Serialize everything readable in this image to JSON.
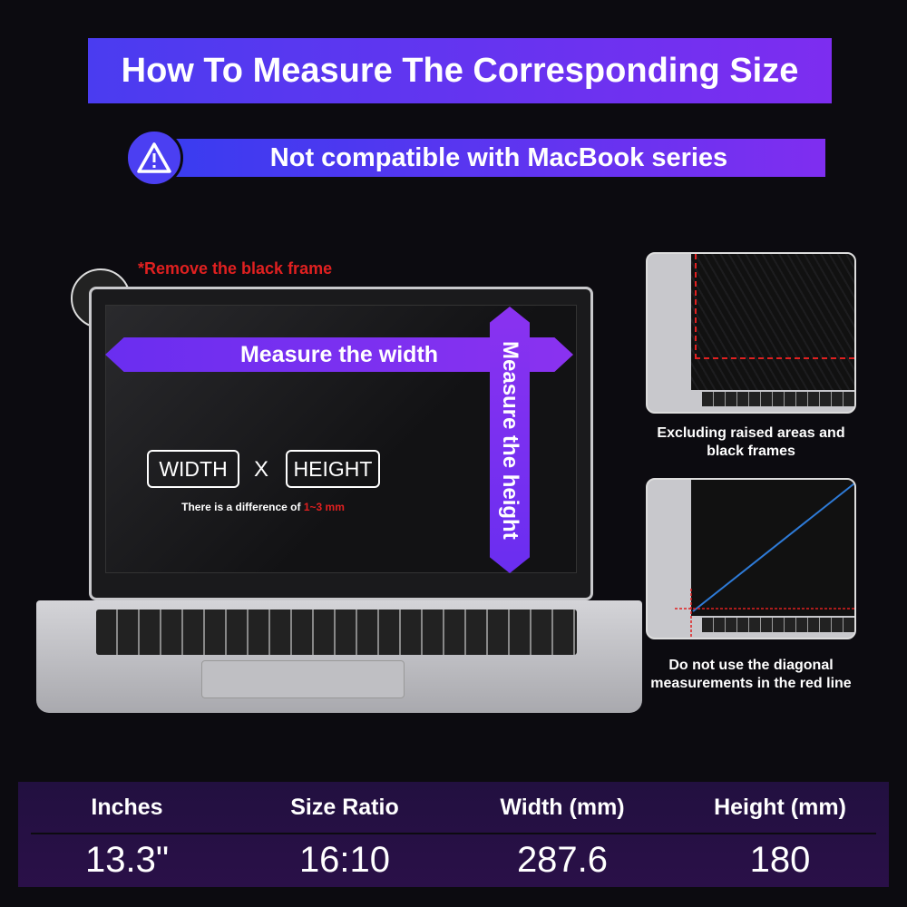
{
  "title": "How To Measure The Corresponding Size",
  "warning": {
    "icon": "warning-triangle-icon",
    "text": "Not compatible with MacBook series"
  },
  "note": "*Remove the black frame",
  "laptop": {
    "measure_width": "Measure the width",
    "measure_height": "Measure the height",
    "width_label": "WIDTH",
    "x_label": "X",
    "height_label": "HEIGHT",
    "difference_prefix": "There is a difference of ",
    "difference_value": "1~3 mm"
  },
  "side": [
    {
      "caption": "Excluding raised areas and black frames"
    },
    {
      "caption": "Do not use the diagonal measurements in the red line"
    }
  ],
  "table": {
    "headers": [
      "Inches",
      "Size Ratio",
      "Width (mm)",
      "Height (mm)"
    ],
    "values": [
      "13.3\"",
      "16:10",
      "287.6",
      "180"
    ]
  },
  "colors": {
    "accent": "#6a2ef0",
    "warning_red": "#e02020"
  }
}
